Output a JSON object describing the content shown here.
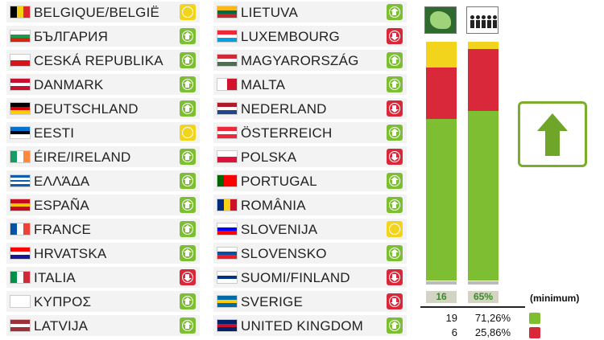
{
  "colors": {
    "yes": "#7dbe32",
    "no": "#d9283a",
    "abstain": "#f2d41c"
  },
  "countries_left": [
    {
      "name": "BELGIQUE/BELGIË",
      "vote": "abs",
      "flag": {
        "dir": "v",
        "c": [
          "#000000",
          "#f5d010",
          "#e1252b"
        ]
      }
    },
    {
      "name": "БЪЛГАРИЯ",
      "vote": "yes",
      "flag": {
        "dir": "h",
        "c": [
          "#ffffff",
          "#1b9b4a",
          "#d62612"
        ]
      }
    },
    {
      "name": "CESKÁ REPUBLIKA",
      "vote": "yes",
      "flag": {
        "dir": "h",
        "c": [
          "#ffffff",
          "#d7141a"
        ]
      }
    },
    {
      "name": "DANMARK",
      "vote": "yes",
      "flag": {
        "dir": "h",
        "c": [
          "#c8102e",
          "#ffffff",
          "#c8102e"
        ]
      }
    },
    {
      "name": "DEUTSCHLAND",
      "vote": "yes",
      "flag": {
        "dir": "h",
        "c": [
          "#000000",
          "#dd0000",
          "#ffce00"
        ]
      }
    },
    {
      "name": "EESTI",
      "vote": "abs",
      "flag": {
        "dir": "h",
        "c": [
          "#0072ce",
          "#000000",
          "#ffffff"
        ]
      }
    },
    {
      "name": "ÉIRE/IRELAND",
      "vote": "yes",
      "flag": {
        "dir": "v",
        "c": [
          "#169b62",
          "#ffffff",
          "#ff883e"
        ]
      }
    },
    {
      "name": "ΕΛΛΆΔΑ",
      "vote": "yes",
      "flag": {
        "dir": "h",
        "c": [
          "#0d5eaf",
          "#ffffff",
          "#0d5eaf",
          "#ffffff",
          "#0d5eaf"
        ]
      }
    },
    {
      "name": "ESPAÑA",
      "vote": "yes",
      "flag": {
        "dir": "h",
        "c": [
          "#c60b1e",
          "#ffc400",
          "#c60b1e"
        ]
      }
    },
    {
      "name": "FRANCE",
      "vote": "yes",
      "flag": {
        "dir": "v",
        "c": [
          "#0055a4",
          "#ffffff",
          "#ef4135"
        ]
      }
    },
    {
      "name": "HRVATSKA",
      "vote": "yes",
      "flag": {
        "dir": "h",
        "c": [
          "#ff0000",
          "#ffffff",
          "#171796"
        ]
      }
    },
    {
      "name": "ITALIA",
      "vote": "no",
      "flag": {
        "dir": "v",
        "c": [
          "#009246",
          "#ffffff",
          "#ce2b37"
        ]
      }
    },
    {
      "name": "ΚΥΠΡΟΣ",
      "vote": "yes",
      "flag": {
        "dir": "h",
        "c": [
          "#ffffff",
          "#ffffff"
        ]
      }
    },
    {
      "name": "LATVIJA",
      "vote": "yes",
      "flag": {
        "dir": "h",
        "c": [
          "#9e3039",
          "#ffffff",
          "#9e3039"
        ]
      }
    }
  ],
  "countries_right": [
    {
      "name": "LIETUVA",
      "vote": "yes",
      "flag": {
        "dir": "h",
        "c": [
          "#fdb913",
          "#006a44",
          "#c1272d"
        ]
      }
    },
    {
      "name": "LUXEMBOURG",
      "vote": "no",
      "flag": {
        "dir": "h",
        "c": [
          "#ed2939",
          "#ffffff",
          "#00a1de"
        ]
      }
    },
    {
      "name": "MAGYARORSZÁG",
      "vote": "yes",
      "flag": {
        "dir": "h",
        "c": [
          "#ce2939",
          "#ffffff",
          "#477050"
        ]
      }
    },
    {
      "name": "MALTA",
      "vote": "yes",
      "flag": {
        "dir": "v",
        "c": [
          "#ffffff",
          "#cf142b"
        ]
      }
    },
    {
      "name": "NEDERLAND",
      "vote": "no",
      "flag": {
        "dir": "h",
        "c": [
          "#ae1c28",
          "#ffffff",
          "#21468b"
        ]
      }
    },
    {
      "name": "ÖSTERREICH",
      "vote": "yes",
      "flag": {
        "dir": "h",
        "c": [
          "#ed2939",
          "#ffffff",
          "#ed2939"
        ]
      }
    },
    {
      "name": "POLSKA",
      "vote": "no",
      "flag": {
        "dir": "h",
        "c": [
          "#ffffff",
          "#dc143c"
        ]
      }
    },
    {
      "name": "PORTUGAL",
      "vote": "yes",
      "flag": {
        "dir": "v",
        "c": [
          "#006600",
          "#ff0000",
          "#ff0000"
        ]
      }
    },
    {
      "name": "ROMÂNIA",
      "vote": "yes",
      "flag": {
        "dir": "v",
        "c": [
          "#002b7f",
          "#fcd116",
          "#ce1126"
        ]
      }
    },
    {
      "name": "SLOVENIJA",
      "vote": "abs",
      "flag": {
        "dir": "h",
        "c": [
          "#ffffff",
          "#0000ff",
          "#ff0000"
        ]
      }
    },
    {
      "name": "SLOVENSKO",
      "vote": "yes",
      "flag": {
        "dir": "h",
        "c": [
          "#ffffff",
          "#0b4ea2",
          "#ee1c25"
        ]
      }
    },
    {
      "name": "SUOMI/FINLAND",
      "vote": "no",
      "flag": {
        "dir": "h",
        "c": [
          "#ffffff",
          "#003580",
          "#ffffff"
        ]
      }
    },
    {
      "name": "SVERIGE",
      "vote": "no",
      "flag": {
        "dir": "h",
        "c": [
          "#006aa7",
          "#fecc00",
          "#006aa7"
        ]
      }
    },
    {
      "name": "UNITED KINGDOM",
      "vote": "yes",
      "flag": {
        "dir": "h",
        "c": [
          "#012169",
          "#c8102e",
          "#012169"
        ]
      }
    }
  ],
  "summary": {
    "states_label": "16",
    "population_label": "65%",
    "minimum_label": "(minimum)",
    "yes_count": "19",
    "yes_percent": "71,26%",
    "no_count": "6",
    "no_percent": "25,86%"
  },
  "bars": {
    "states": [
      {
        "vote": "abs",
        "fraction": 0.107
      },
      {
        "vote": "no",
        "fraction": 0.214
      },
      {
        "vote": "yes",
        "fraction": 0.679
      }
    ],
    "population": [
      {
        "vote": "abs",
        "fraction": 0.029
      },
      {
        "vote": "no",
        "fraction": 0.259
      },
      {
        "vote": "yes",
        "fraction": 0.712
      }
    ]
  },
  "icons": {
    "states_icon": "eu-map-icon",
    "population_icon": "population-icon",
    "result_icon": "arrow-up-icon"
  }
}
